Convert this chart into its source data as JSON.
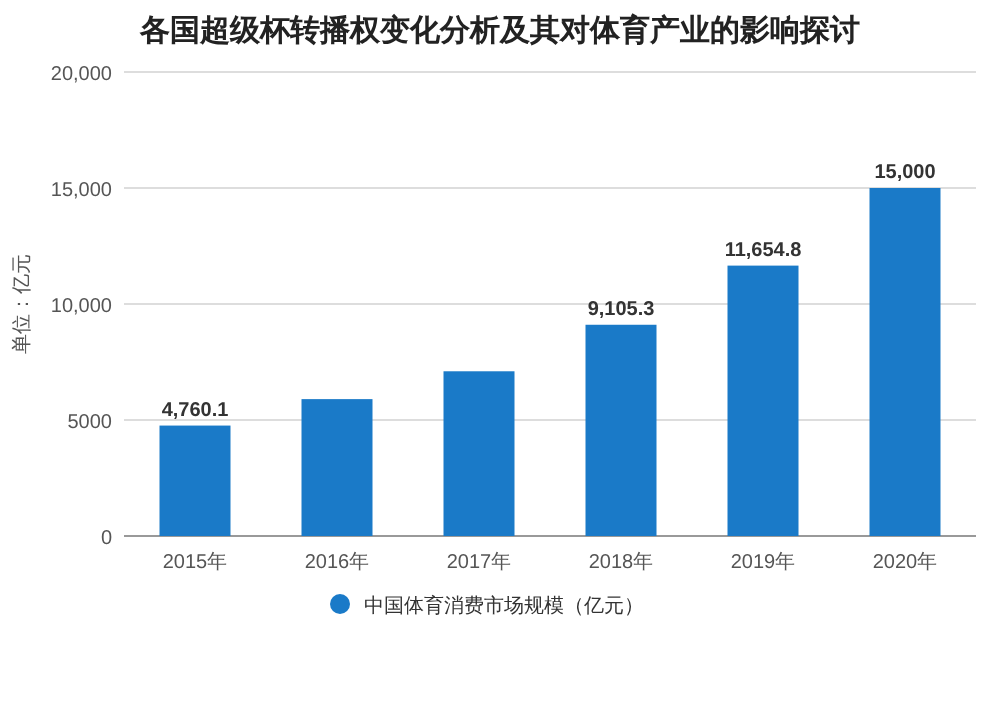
{
  "chart_data": {
    "type": "bar",
    "title": "各国超级杯转播权变化分析及其对体育产业的影响探讨",
    "ylabel": "单位：亿元",
    "categories": [
      "2015年",
      "2016年",
      "2017年",
      "2018年",
      "2019年",
      "2020年"
    ],
    "series": [
      {
        "name": "中国体育消费市场规模（亿元）",
        "color": "#1a7ac8",
        "values": [
          4760.1,
          5900,
          7100,
          9105.3,
          11654.8,
          15000
        ],
        "value_labels": [
          "4,760.1",
          null,
          null,
          "9,105.3",
          "11,654.8",
          "15,000"
        ]
      }
    ],
    "ylim": [
      0,
      20000
    ],
    "yticks": [
      0,
      5000,
      {
        "value": 10000,
        "label": "10,000"
      },
      {
        "value": 15000,
        "label": "15,000"
      },
      {
        "value": 20000,
        "label": "20,000"
      }
    ],
    "grid": "y",
    "legend": "bottom",
    "marker": "circle"
  }
}
